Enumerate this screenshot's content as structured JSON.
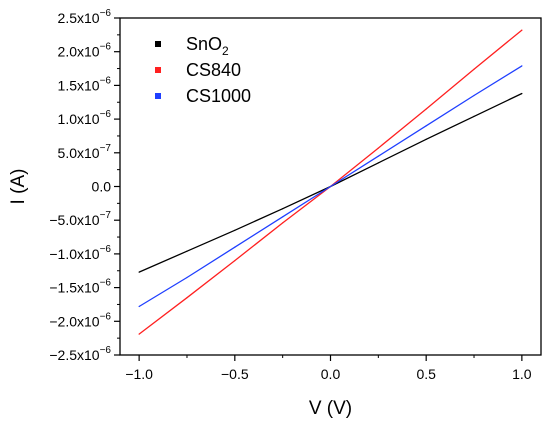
{
  "chart_data": {
    "type": "line",
    "xlabel": "V (V)",
    "ylabel": "I (A)",
    "xlim": [
      -1.1,
      1.1
    ],
    "ylim": [
      -2.5e-06,
      2.5e-06
    ],
    "x_ticks": [
      -1.0,
      -0.5,
      0.0,
      0.5,
      1.0
    ],
    "x_tick_labels": [
      "−1.0",
      "−0.5",
      "0.0",
      "0.5",
      "1.0"
    ],
    "y_ticks": [
      2.5e-06,
      2e-06,
      1.5e-06,
      1e-06,
      5e-07,
      0,
      -5e-07,
      -1e-06,
      -1.5e-06,
      -2e-06,
      -2.5e-06
    ],
    "y_tick_labels": [
      {
        "mant": "2.5x10",
        "exp": "−6"
      },
      {
        "mant": "2.0x10",
        "exp": "−6"
      },
      {
        "mant": "1.5x10",
        "exp": "−6"
      },
      {
        "mant": "1.0x10",
        "exp": "−6"
      },
      {
        "mant": "5.0x10",
        "exp": "−7"
      },
      {
        "mant": "0.0",
        "exp": ""
      },
      {
        "mant": "−5.0x10",
        "exp": "−7"
      },
      {
        "mant": "−1.0x10",
        "exp": "−6"
      },
      {
        "mant": "−1.5x10",
        "exp": "−6"
      },
      {
        "mant": "−2.0x10",
        "exp": "−6"
      },
      {
        "mant": "−2.5x10",
        "exp": "−6"
      }
    ],
    "grid": false,
    "legend_position": "top-left",
    "series": [
      {
        "name": "SnO₂",
        "name_base": "SnO",
        "name_sub": "2",
        "color": "#000000",
        "x": [
          -1.0,
          -0.75,
          -0.5,
          -0.25,
          0.0,
          0.25,
          0.5,
          0.75,
          1.0
        ],
        "y": [
          -1.27e-06,
          -9.6e-07,
          -6.5e-07,
          -3.3e-07,
          0.0,
          3.5e-07,
          7e-07,
          1.04e-06,
          1.38e-06
        ]
      },
      {
        "name": "CS840",
        "name_base": "CS840",
        "name_sub": "",
        "color": "#ff2020",
        "x": [
          -1.0,
          -0.75,
          -0.5,
          -0.25,
          0.0,
          0.25,
          0.5,
          0.75,
          1.0
        ],
        "y": [
          -2.19e-06,
          -1.65e-06,
          -1.1e-06,
          -5.4e-07,
          0.0,
          5.7e-07,
          1.15e-06,
          1.74e-06,
          2.32e-06
        ]
      },
      {
        "name": "CS1000",
        "name_base": "CS1000",
        "name_sub": "",
        "color": "#1f3fff",
        "x": [
          -1.0,
          -0.75,
          -0.5,
          -0.25,
          0.0,
          0.25,
          0.5,
          0.75,
          1.0
        ],
        "y": [
          -1.78e-06,
          -1.35e-06,
          -9e-07,
          -4.5e-07,
          0.0,
          4.5e-07,
          9e-07,
          1.35e-06,
          1.79e-06
        ]
      }
    ]
  }
}
